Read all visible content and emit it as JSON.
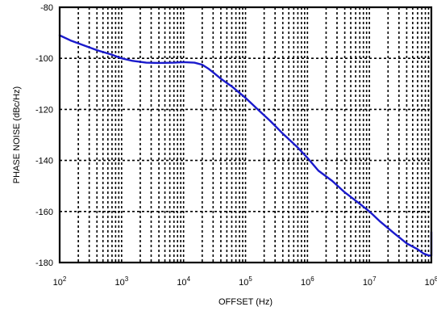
{
  "chart_data": {
    "type": "line",
    "xscale": "log",
    "xlabel": "OFFSET (Hz)",
    "ylabel": "PHASE NOISE (dBc/Hz)",
    "xlim": [
      100,
      100000000
    ],
    "ylim": [
      -180,
      -80
    ],
    "grid": true,
    "x_ticks": [
      {
        "base": "10",
        "exp": "2",
        "value": 100
      },
      {
        "base": "10",
        "exp": "3",
        "value": 1000
      },
      {
        "base": "10",
        "exp": "4",
        "value": 10000
      },
      {
        "base": "10",
        "exp": "5",
        "value": 100000
      },
      {
        "base": "10",
        "exp": "6",
        "value": 1000000
      },
      {
        "base": "10",
        "exp": "7",
        "value": 10000000
      },
      {
        "base": "10",
        "exp": "8",
        "value": 100000000
      }
    ],
    "y_ticks": [
      {
        "label": "-80",
        "value": -80
      },
      {
        "label": "-100",
        "value": -100
      },
      {
        "label": "-120",
        "value": -120
      },
      {
        "label": "-140",
        "value": -140
      },
      {
        "label": "-160",
        "value": -160
      },
      {
        "label": "-180",
        "value": -180
      }
    ],
    "series": [
      {
        "color": "#1a1acc",
        "x": [
          100,
          150,
          250,
          400,
          700,
          1000,
          1500,
          2500,
          4000,
          7000,
          10000,
          15000,
          20000,
          25000,
          30000,
          40000,
          60000,
          100000,
          150000,
          250000,
          400000,
          700000,
          1000000,
          1500000,
          2500000,
          4000000,
          7000000,
          10000000,
          15000000,
          25000000,
          40000000,
          60000000,
          75000000,
          90000000,
          100000000,
          100000000
        ],
        "y": [
          -91,
          -93,
          -95,
          -96.8,
          -98.6,
          -100,
          -101,
          -101.7,
          -101.8,
          -101.7,
          -101.5,
          -101.7,
          -102.5,
          -104,
          -105.5,
          -108,
          -111,
          -115.5,
          -119.5,
          -124.5,
          -129.5,
          -135,
          -139,
          -144,
          -148,
          -152.5,
          -157,
          -160,
          -164,
          -168.5,
          -172.5,
          -174.8,
          -176.5,
          -177.2,
          -177.3,
          -168
        ]
      }
    ]
  }
}
